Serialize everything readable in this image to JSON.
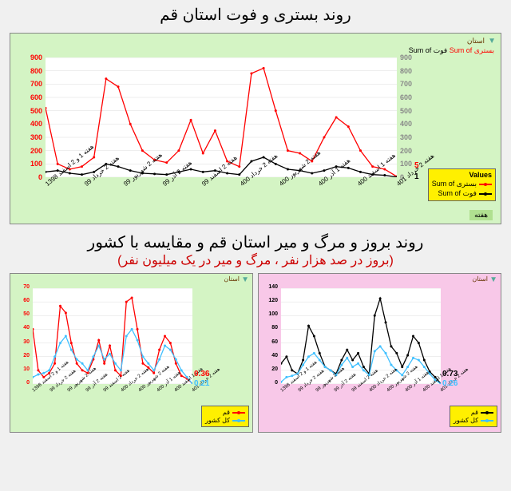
{
  "titles": {
    "top": "روند بستری و فوت استان قم",
    "bottom": "روند بروز و مرگ و میر استان قم و مقایسه با کشور",
    "subtitle": "(بروز در صد هزار نفر ، مرگ و میر در یک میلیون نفر)"
  },
  "chart_top": {
    "type": "line",
    "bg_color": "#d4f4c4",
    "plot_bg": "#ffffff",
    "grid_color": "#e0e0e0",
    "x_categories": [
      "هفته 1 و 2 اسفند 1398",
      "هفته 2 خرداد 99",
      "هفته 2 شهریور 99",
      "هفته 2 آذر 99",
      "هفته 2 اسفند 99",
      "هفته 2 خرداد 400",
      "هفته 2 شهریور 400",
      "هفته 1 آذر 400",
      "هفته 1 اسفند 400",
      "هفته 2 خرداد 401"
    ],
    "series": [
      {
        "name": "بستری Sum of",
        "color": "#ff0000",
        "marker": "dot",
        "data": [
          520,
          100,
          60,
          80,
          150,
          740,
          680,
          400,
          200,
          130,
          110,
          200,
          430,
          180,
          350,
          120,
          80,
          780,
          820,
          500,
          200,
          180,
          120,
          300,
          450,
          380,
          200,
          80,
          60,
          5
        ]
      },
      {
        "name": "فوت Sum of",
        "color": "#000000",
        "marker": "dot",
        "data": [
          40,
          50,
          30,
          20,
          40,
          100,
          80,
          50,
          30,
          25,
          20,
          40,
          60,
          40,
          50,
          30,
          20,
          120,
          150,
          100,
          60,
          50,
          30,
          50,
          80,
          70,
          40,
          20,
          15,
          1
        ]
      }
    ],
    "ylim": [
      0,
      900
    ],
    "ytick_step": 100,
    "y2lim": [
      0,
      900
    ],
    "y2tick_step": 100,
    "end_labels": [
      {
        "text": "5",
        "color": "#ff0000",
        "y": 5
      },
      {
        "text": "1",
        "color": "#000000",
        "y": 1
      }
    ],
    "legend_title": "Values",
    "cat_label": "استان",
    "axis_label": "هفته"
  },
  "chart_bl": {
    "type": "line",
    "bg_color": "#d4f4c4",
    "plot_bg": "#ffffff",
    "x_categories": [
      "هفته 1 و 2 اسفند 1398",
      "هفته 2 خرداد 99",
      "هفته 2 شهریور 99",
      "هفته 2 آذر 99",
      "هفته 2 اسفند 99",
      "هفته 2 خرداد 400",
      "هفته 2 شهریور 400",
      "هفته 1 آذر 400",
      "هفته 1 اسفند 400",
      "هفته 2 خرداد 401"
    ],
    "series": [
      {
        "name": "قم",
        "color": "#ff0000",
        "marker": "dot",
        "data": [
          40,
          10,
          5,
          8,
          15,
          57,
          52,
          30,
          15,
          10,
          8,
          18,
          32,
          15,
          28,
          10,
          6,
          60,
          63,
          40,
          15,
          12,
          8,
          25,
          35,
          30,
          15,
          6,
          4,
          0.36
        ]
      },
      {
        "name": "کل کشور",
        "color": "#40c0ff",
        "marker": "dot",
        "data": [
          5,
          7,
          8,
          10,
          20,
          30,
          35,
          25,
          18,
          15,
          10,
          20,
          28,
          18,
          22,
          15,
          10,
          35,
          40,
          32,
          20,
          15,
          10,
          18,
          28,
          25,
          18,
          10,
          5,
          0.21
        ]
      }
    ],
    "ylim": [
      0,
      70
    ],
    "ytick_step": 10,
    "end_labels": [
      {
        "text": "0.36",
        "color": "#ff0000"
      },
      {
        "text": "0.21",
        "color": "#40c0ff"
      }
    ],
    "cat_label": "استان"
  },
  "chart_br": {
    "type": "line",
    "bg_color": "#f8c8e8",
    "plot_bg": "#ffffff",
    "x_categories": [
      "هفته 1 و 2 اسفند 1398",
      "هفته 2 خرداد 99",
      "هفته 2 شهریور 99",
      "هفته 2 آذر 99",
      "هفته 2 اسفند 99",
      "هفته 2 خرداد 400",
      "هفته 2 شهریور 400",
      "هفته 1 آذر 400",
      "هفته 1 اسفند 400",
      "هفته 2 خرداد 401"
    ],
    "series": [
      {
        "name": "قم",
        "color": "#000000",
        "marker": "dot",
        "data": [
          30,
          40,
          20,
          15,
          35,
          85,
          70,
          45,
          25,
          20,
          15,
          35,
          50,
          35,
          45,
          25,
          15,
          100,
          125,
          90,
          55,
          45,
          25,
          42,
          70,
          60,
          35,
          18,
          10,
          0.73
        ]
      },
      {
        "name": "کل کشور",
        "color": "#40c0ff",
        "marker": "dot",
        "data": [
          3,
          10,
          12,
          15,
          28,
          40,
          45,
          35,
          25,
          20,
          13,
          28,
          38,
          25,
          30,
          20,
          13,
          48,
          55,
          45,
          28,
          20,
          13,
          25,
          38,
          35,
          25,
          15,
          6,
          0.26
        ]
      }
    ],
    "ylim": [
      0,
      140
    ],
    "ytick_step": 20,
    "end_labels": [
      {
        "text": "0.73",
        "color": "#000000"
      },
      {
        "text": "0.26",
        "color": "#40c0ff"
      }
    ],
    "cat_label": "استان"
  }
}
